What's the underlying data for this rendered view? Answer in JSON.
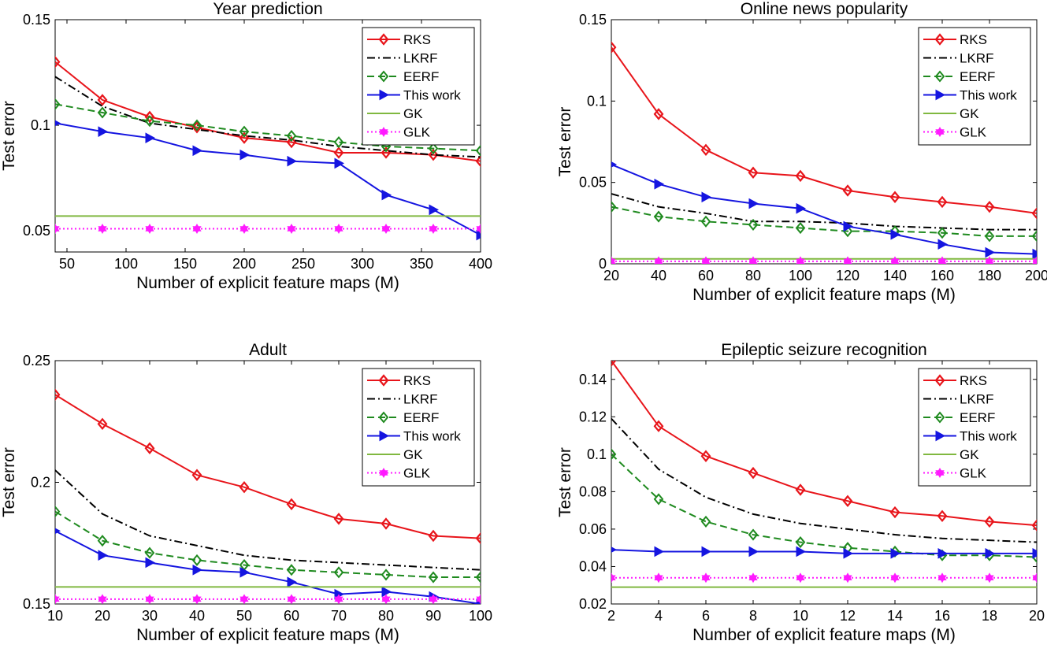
{
  "chart_data": [
    {
      "type": "line",
      "title": "Year prediction",
      "xlabel": "Number of explicit feature maps (M)",
      "ylabel": "Test error",
      "xlim": [
        40,
        400
      ],
      "ylim": [
        0.04,
        0.15
      ],
      "xticks": [
        "50",
        "100",
        "150",
        "200",
        "250",
        "300",
        "350",
        "400"
      ],
      "yticks": [
        "0.05",
        "0.1",
        "0.15"
      ],
      "x": [
        40,
        80,
        120,
        160,
        200,
        240,
        280,
        320,
        360,
        400
      ],
      "series": [
        {
          "name": "RKS",
          "values": [
            0.13,
            0.112,
            0.104,
            0.099,
            0.094,
            0.092,
            0.087,
            0.087,
            0.086,
            0.083
          ]
        },
        {
          "name": "LKRF",
          "values": [
            0.123,
            0.109,
            0.101,
            0.098,
            0.095,
            0.093,
            0.09,
            0.088,
            0.086,
            0.085
          ]
        },
        {
          "name": "EERF",
          "values": [
            0.11,
            0.106,
            0.102,
            0.1,
            0.097,
            0.095,
            0.092,
            0.09,
            0.089,
            0.088
          ]
        },
        {
          "name": "This work",
          "values": [
            0.101,
            0.097,
            0.094,
            0.088,
            0.086,
            0.083,
            0.082,
            0.067,
            0.06,
            0.048
          ]
        },
        {
          "name": "GK",
          "values": [
            0.057,
            0.057,
            0.057,
            0.057,
            0.057,
            0.057,
            0.057,
            0.057,
            0.057,
            0.057
          ]
        },
        {
          "name": "GLK",
          "values": [
            0.051,
            0.051,
            0.051,
            0.051,
            0.051,
            0.051,
            0.051,
            0.051,
            0.051,
            0.051
          ]
        }
      ]
    },
    {
      "type": "line",
      "title": "Online news popularity",
      "xlabel": "Number of explicit feature maps (M)",
      "ylabel": "Test error",
      "xlim": [
        20,
        200
      ],
      "ylim": [
        0,
        0.15
      ],
      "xticks": [
        "20",
        "40",
        "60",
        "80",
        "100",
        "120",
        "140",
        "160",
        "180",
        "200"
      ],
      "yticks": [
        "0",
        "0.05",
        "0.1",
        "0.15"
      ],
      "x": [
        20,
        40,
        60,
        80,
        100,
        120,
        140,
        160,
        180,
        200
      ],
      "series": [
        {
          "name": "RKS",
          "values": [
            0.133,
            0.092,
            0.07,
            0.056,
            0.054,
            0.045,
            0.041,
            0.038,
            0.035,
            0.031
          ]
        },
        {
          "name": "LKRF",
          "values": [
            0.043,
            0.035,
            0.031,
            0.026,
            0.026,
            0.025,
            0.023,
            0.022,
            0.021,
            0.021
          ]
        },
        {
          "name": "EERF",
          "values": [
            0.035,
            0.029,
            0.026,
            0.024,
            0.022,
            0.02,
            0.02,
            0.019,
            0.017,
            0.017
          ]
        },
        {
          "name": "This work",
          "values": [
            0.061,
            0.049,
            0.041,
            0.037,
            0.034,
            0.023,
            0.018,
            0.012,
            0.007,
            0.006
          ]
        },
        {
          "name": "GK",
          "values": [
            0.003,
            0.003,
            0.003,
            0.003,
            0.003,
            0.003,
            0.003,
            0.003,
            0.003,
            0.003
          ]
        },
        {
          "name": "GLK",
          "values": [
            0.0015,
            0.0015,
            0.0015,
            0.0015,
            0.0015,
            0.0015,
            0.0015,
            0.0015,
            0.0015,
            0.0015
          ]
        }
      ]
    },
    {
      "type": "line",
      "title": "Adult",
      "xlabel": "Number of explicit feature maps (M)",
      "ylabel": "Test error",
      "xlim": [
        10,
        100
      ],
      "ylim": [
        0.15,
        0.25
      ],
      "xticks": [
        "10",
        "20",
        "30",
        "40",
        "50",
        "60",
        "70",
        "80",
        "90",
        "100"
      ],
      "yticks": [
        "0.15",
        "0.2",
        "0.25"
      ],
      "x": [
        10,
        20,
        30,
        40,
        50,
        60,
        70,
        80,
        90,
        100
      ],
      "series": [
        {
          "name": "RKS",
          "values": [
            0.236,
            0.224,
            0.214,
            0.203,
            0.198,
            0.191,
            0.185,
            0.183,
            0.178,
            0.177
          ]
        },
        {
          "name": "LKRF",
          "values": [
            0.205,
            0.187,
            0.178,
            0.174,
            0.17,
            0.168,
            0.167,
            0.166,
            0.165,
            0.164
          ]
        },
        {
          "name": "EERF",
          "values": [
            0.188,
            0.176,
            0.171,
            0.168,
            0.166,
            0.164,
            0.163,
            0.162,
            0.161,
            0.161
          ]
        },
        {
          "name": "This work",
          "values": [
            0.18,
            0.17,
            0.167,
            0.164,
            0.163,
            0.159,
            0.154,
            0.155,
            0.153,
            0.15
          ]
        },
        {
          "name": "GK",
          "values": [
            0.157,
            0.157,
            0.157,
            0.157,
            0.157,
            0.157,
            0.157,
            0.157,
            0.157,
            0.157
          ]
        },
        {
          "name": "GLK",
          "values": [
            0.152,
            0.152,
            0.152,
            0.152,
            0.152,
            0.152,
            0.152,
            0.152,
            0.152,
            0.152
          ]
        }
      ]
    },
    {
      "type": "line",
      "title": "Epileptic seizure recognition",
      "xlabel": "Number of explicit feature maps (M)",
      "ylabel": "Test error",
      "xlim": [
        2,
        20
      ],
      "ylim": [
        0.02,
        0.15
      ],
      "xticks": [
        "2",
        "4",
        "6",
        "8",
        "10",
        "12",
        "14",
        "16",
        "18",
        "20"
      ],
      "yticks": [
        "0.02",
        "0.04",
        "0.06",
        "0.08",
        "0.1",
        "0.12",
        "0.14"
      ],
      "x": [
        2,
        4,
        6,
        8,
        10,
        12,
        14,
        16,
        18,
        20
      ],
      "series": [
        {
          "name": "RKS",
          "values": [
            0.15,
            0.115,
            0.099,
            0.09,
            0.081,
            0.075,
            0.069,
            0.067,
            0.064,
            0.062
          ]
        },
        {
          "name": "LKRF",
          "values": [
            0.119,
            0.092,
            0.077,
            0.068,
            0.063,
            0.06,
            0.057,
            0.055,
            0.054,
            0.053
          ]
        },
        {
          "name": "EERF",
          "values": [
            0.1,
            0.076,
            0.064,
            0.057,
            0.053,
            0.05,
            0.048,
            0.046,
            0.046,
            0.045
          ]
        },
        {
          "name": "This work",
          "values": [
            0.049,
            0.048,
            0.048,
            0.048,
            0.048,
            0.047,
            0.047,
            0.047,
            0.047,
            0.047
          ]
        },
        {
          "name": "GK",
          "values": [
            0.029,
            0.029,
            0.029,
            0.029,
            0.029,
            0.029,
            0.029,
            0.029,
            0.029,
            0.029
          ]
        },
        {
          "name": "GLK",
          "values": [
            0.034,
            0.034,
            0.034,
            0.034,
            0.034,
            0.034,
            0.034,
            0.034,
            0.034,
            0.034
          ]
        }
      ]
    }
  ],
  "styles": {
    "RKS": {
      "color": "#e8151b",
      "marker": "diamond",
      "dash": ""
    },
    "LKRF": {
      "color": "#000000",
      "marker": "none",
      "dash": "10,4,2,4"
    },
    "EERF": {
      "color": "#1f8a1f",
      "marker": "diamond-open",
      "dash": "9,5"
    },
    "This work": {
      "color": "#1515e0",
      "marker": "triangle-right",
      "dash": ""
    },
    "GK": {
      "color": "#80b840",
      "marker": "none",
      "dash": ""
    },
    "GLK": {
      "color": "#ff1aff",
      "marker": "hexagram",
      "dash": "2,3"
    }
  }
}
